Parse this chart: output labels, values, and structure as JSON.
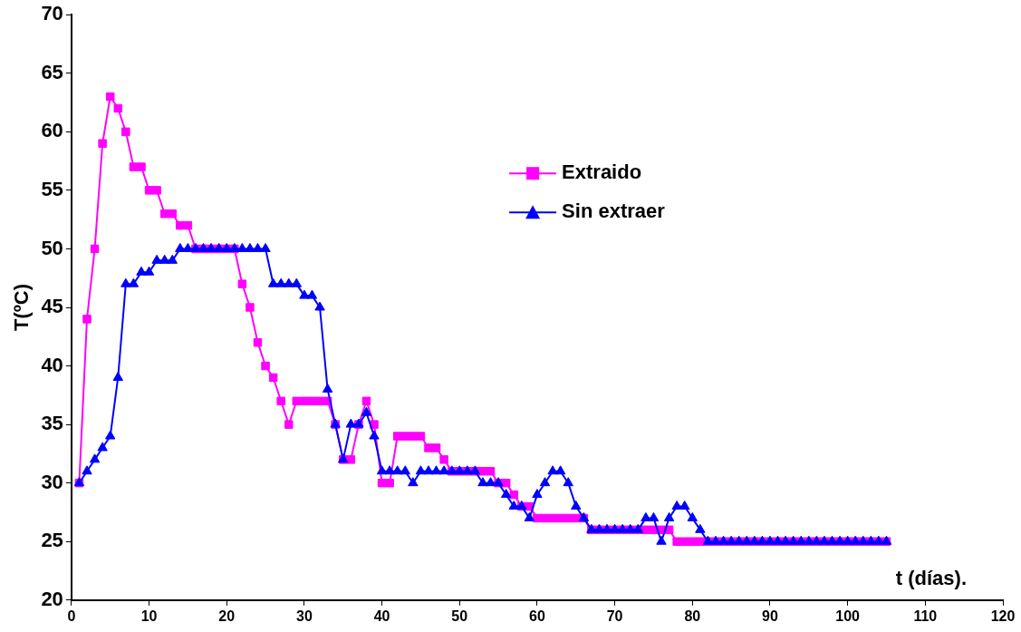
{
  "chart_data": {
    "type": "line",
    "xlabel": "t (días).",
    "ylabel": "T(ºC)",
    "x": [
      1,
      2,
      3,
      4,
      5,
      6,
      7,
      8,
      9,
      10,
      11,
      12,
      13,
      14,
      15,
      16,
      17,
      18,
      19,
      20,
      21,
      22,
      23,
      24,
      25,
      26,
      27,
      28,
      29,
      30,
      31,
      32,
      33,
      34,
      35,
      36,
      37,
      38,
      39,
      40,
      41,
      42,
      43,
      44,
      45,
      46,
      47,
      48,
      49,
      50,
      51,
      52,
      53,
      54,
      55,
      56,
      57,
      58,
      59,
      60,
      61,
      62,
      63,
      64,
      65,
      66,
      67,
      68,
      69,
      70,
      71,
      72,
      73,
      74,
      75,
      76,
      77,
      78,
      79,
      80,
      81,
      82,
      83,
      84,
      85,
      86,
      87,
      88,
      89,
      90,
      91,
      92,
      93,
      94,
      95,
      96,
      97,
      98,
      99,
      100,
      101,
      102,
      103,
      104,
      105
    ],
    "series": [
      {
        "name": "Extraido",
        "color": "#ff00ff",
        "marker": "square",
        "values": [
          30,
          44,
          50,
          59,
          63,
          62,
          60,
          57,
          57,
          55,
          55,
          53,
          53,
          52,
          52,
          50,
          50,
          50,
          50,
          50,
          50,
          47,
          45,
          42,
          40,
          39,
          37,
          35,
          37,
          37,
          37,
          37,
          37,
          35,
          32,
          32,
          35,
          37,
          35,
          30,
          30,
          34,
          34,
          34,
          34,
          33,
          33,
          32,
          31,
          31,
          31,
          31,
          31,
          31,
          30,
          30,
          29,
          28,
          28,
          27,
          27,
          27,
          27,
          27,
          27,
          27,
          26,
          26,
          26,
          26,
          26,
          26,
          26,
          26,
          26,
          26,
          26,
          25,
          25,
          25,
          25,
          25,
          25,
          25,
          25,
          25,
          25,
          25,
          25,
          25,
          25,
          25,
          25,
          25,
          25,
          25,
          25,
          25,
          25,
          25,
          25,
          25,
          25,
          25,
          25
        ]
      },
      {
        "name": "Sin extraer",
        "color": "#0000ff",
        "marker": "triangle",
        "values": [
          30,
          31,
          32,
          33,
          34,
          39,
          47,
          47,
          48,
          48,
          49,
          49,
          49,
          50,
          50,
          50,
          50,
          50,
          50,
          50,
          50,
          50,
          50,
          50,
          50,
          47,
          47,
          47,
          47,
          46,
          46,
          45,
          38,
          35,
          32,
          35,
          35,
          36,
          34,
          31,
          31,
          31,
          31,
          30,
          31,
          31,
          31,
          31,
          31,
          31,
          31,
          31,
          30,
          30,
          30,
          29,
          28,
          28,
          27,
          29,
          30,
          31,
          31,
          30,
          28,
          27,
          26,
          26,
          26,
          26,
          26,
          26,
          26,
          27,
          27,
          25,
          27,
          28,
          28,
          27,
          26,
          25,
          25,
          25,
          25,
          25,
          25,
          25,
          25,
          25,
          25,
          25,
          25,
          25,
          25,
          25,
          25,
          25,
          25,
          25,
          25,
          25,
          25,
          25,
          25
        ]
      }
    ],
    "xlim": [
      0,
      120
    ],
    "xticks": [
      0,
      10,
      20,
      30,
      40,
      50,
      60,
      70,
      80,
      90,
      100,
      110,
      120
    ],
    "ylim": [
      20,
      70
    ],
    "yticks": [
      20,
      25,
      30,
      35,
      40,
      45,
      50,
      55,
      60,
      65,
      70
    ],
    "grid": false,
    "legend": "top right",
    "line_style": "solid"
  }
}
